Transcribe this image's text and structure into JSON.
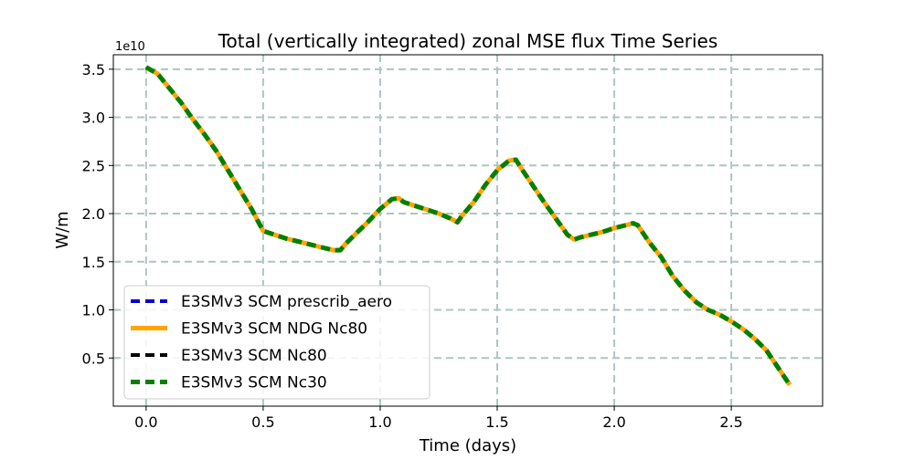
{
  "chart_data": {
    "type": "line",
    "title": "Total (vertically integrated) zonal MSE flux Time Series",
    "xlabel": "Time (days)",
    "ylabel": "W/m",
    "y_offset_label": "1e10",
    "xlim": [
      -0.14,
      2.89
    ],
    "ylim": [
      0.0,
      3.65
    ],
    "xticks": [
      0.0,
      0.5,
      1.0,
      1.5,
      2.0,
      2.5
    ],
    "xtick_labels": [
      "0.0",
      "0.5",
      "1.0",
      "1.5",
      "2.0",
      "2.5"
    ],
    "yticks": [
      0.5,
      1.0,
      1.5,
      2.0,
      2.5,
      3.0,
      3.5
    ],
    "ytick_labels": [
      "0.5",
      "1.0",
      "1.5",
      "2.0",
      "2.5",
      "3.0",
      "3.5"
    ],
    "grid": true,
    "legend_position": "lower-left",
    "x": [
      0.0,
      0.05,
      0.1,
      0.15,
      0.2,
      0.25,
      0.3,
      0.35,
      0.4,
      0.45,
      0.5,
      0.55,
      0.6,
      0.65,
      0.7,
      0.75,
      0.8,
      0.83,
      0.85,
      0.9,
      0.95,
      1.0,
      1.05,
      1.08,
      1.1,
      1.15,
      1.2,
      1.25,
      1.3,
      1.33,
      1.35,
      1.4,
      1.45,
      1.5,
      1.55,
      1.58,
      1.6,
      1.65,
      1.7,
      1.75,
      1.8,
      1.83,
      1.85,
      1.9,
      1.95,
      2.0,
      2.05,
      2.08,
      2.1,
      2.15,
      2.2,
      2.25,
      2.3,
      2.35,
      2.4,
      2.45,
      2.5,
      2.55,
      2.6,
      2.65,
      2.7,
      2.75
    ],
    "series": [
      {
        "name": "E3SMv3 SCM prescrib_aero",
        "color": "#0000cc",
        "style": "dashed",
        "values": [
          3.52,
          3.45,
          3.3,
          3.15,
          2.98,
          2.82,
          2.65,
          2.45,
          2.25,
          2.05,
          1.82,
          1.78,
          1.74,
          1.71,
          1.68,
          1.65,
          1.62,
          1.62,
          1.68,
          1.8,
          1.92,
          2.05,
          2.15,
          2.16,
          2.12,
          2.08,
          2.04,
          2.0,
          1.95,
          1.91,
          1.98,
          2.12,
          2.3,
          2.45,
          2.55,
          2.56,
          2.48,
          2.3,
          2.12,
          1.95,
          1.78,
          1.73,
          1.75,
          1.78,
          1.81,
          1.85,
          1.88,
          1.9,
          1.88,
          1.7,
          1.55,
          1.35,
          1.2,
          1.08,
          1.0,
          0.95,
          0.88,
          0.8,
          0.7,
          0.58,
          0.4,
          0.22
        ]
      },
      {
        "name": "E3SMv3 SCM NDG Nc80",
        "color": "#ffa500",
        "style": "solid",
        "values": [
          3.52,
          3.45,
          3.3,
          3.15,
          2.98,
          2.82,
          2.65,
          2.45,
          2.25,
          2.05,
          1.82,
          1.78,
          1.74,
          1.71,
          1.68,
          1.65,
          1.62,
          1.62,
          1.68,
          1.8,
          1.92,
          2.05,
          2.15,
          2.16,
          2.12,
          2.08,
          2.04,
          2.0,
          1.95,
          1.91,
          1.98,
          2.12,
          2.3,
          2.45,
          2.55,
          2.56,
          2.48,
          2.3,
          2.12,
          1.95,
          1.78,
          1.73,
          1.75,
          1.78,
          1.81,
          1.85,
          1.88,
          1.9,
          1.88,
          1.7,
          1.55,
          1.35,
          1.2,
          1.08,
          1.0,
          0.95,
          0.88,
          0.8,
          0.7,
          0.58,
          0.4,
          0.22
        ]
      },
      {
        "name": "E3SMv3 SCM Nc80",
        "color": "#000000",
        "style": "dashed",
        "values": [
          3.52,
          3.45,
          3.3,
          3.15,
          2.98,
          2.82,
          2.65,
          2.45,
          2.25,
          2.05,
          1.82,
          1.78,
          1.74,
          1.71,
          1.68,
          1.65,
          1.62,
          1.62,
          1.68,
          1.8,
          1.92,
          2.05,
          2.15,
          2.16,
          2.12,
          2.08,
          2.04,
          2.0,
          1.95,
          1.91,
          1.98,
          2.12,
          2.3,
          2.45,
          2.55,
          2.56,
          2.48,
          2.3,
          2.12,
          1.95,
          1.78,
          1.73,
          1.75,
          1.78,
          1.81,
          1.85,
          1.88,
          1.9,
          1.88,
          1.7,
          1.55,
          1.35,
          1.2,
          1.08,
          1.0,
          0.95,
          0.88,
          0.8,
          0.7,
          0.58,
          0.4,
          0.22
        ]
      },
      {
        "name": "E3SMv3 SCM Nc30",
        "color": "#008000",
        "style": "dashed",
        "values": [
          3.52,
          3.45,
          3.3,
          3.15,
          2.98,
          2.82,
          2.65,
          2.45,
          2.25,
          2.05,
          1.82,
          1.78,
          1.74,
          1.71,
          1.68,
          1.65,
          1.62,
          1.62,
          1.68,
          1.8,
          1.92,
          2.05,
          2.15,
          2.16,
          2.12,
          2.08,
          2.04,
          2.0,
          1.95,
          1.91,
          1.98,
          2.12,
          2.3,
          2.45,
          2.55,
          2.56,
          2.48,
          2.3,
          2.12,
          1.95,
          1.78,
          1.73,
          1.75,
          1.78,
          1.81,
          1.85,
          1.88,
          1.9,
          1.88,
          1.7,
          1.55,
          1.35,
          1.2,
          1.08,
          1.0,
          0.95,
          0.88,
          0.8,
          0.7,
          0.58,
          0.4,
          0.22
        ]
      }
    ]
  }
}
